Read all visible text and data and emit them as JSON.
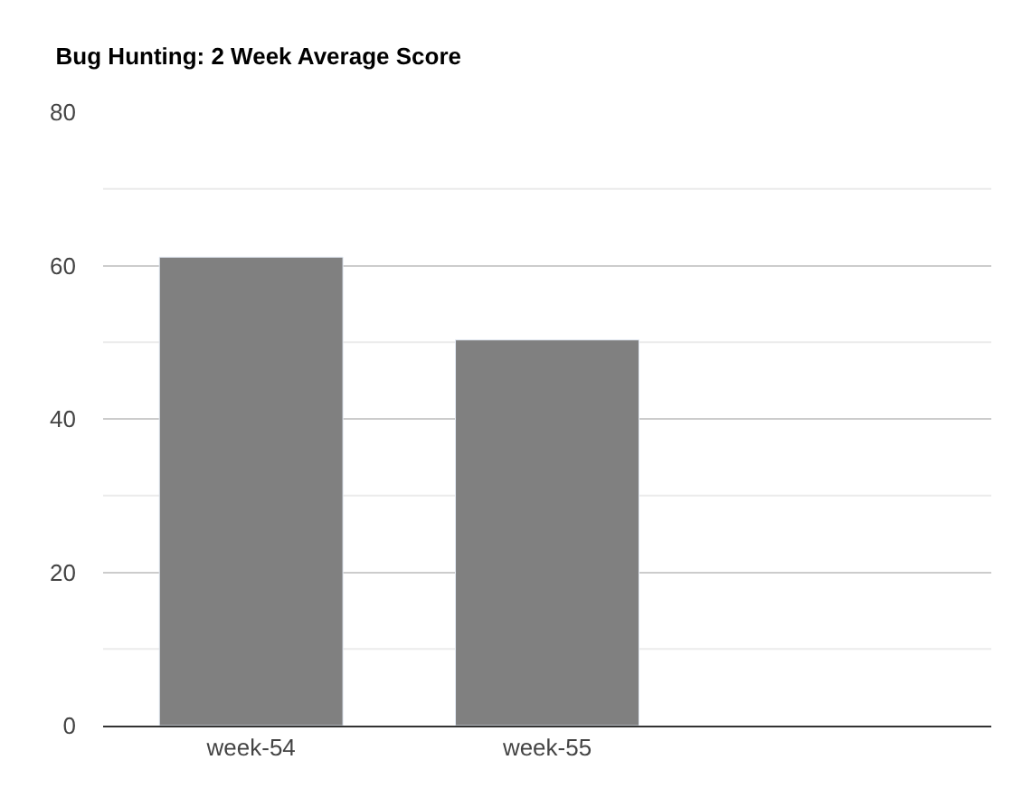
{
  "chart_data": {
    "type": "bar",
    "title": "Bug Hunting: 2 Week Average Score",
    "categories": [
      "week-54",
      "week-55",
      null
    ],
    "values": [
      61.1,
      50.3,
      null
    ],
    "color": "#808080",
    "ylim": [
      0,
      80
    ],
    "yticks": [
      0,
      {
        "value": 10,
        "label": null
      },
      20,
      {
        "value": 30,
        "label": null
      },
      40,
      {
        "value": 50,
        "label": null
      },
      60,
      {
        "value": 70,
        "label": null
      },
      80
    ],
    "grid": "y"
  }
}
